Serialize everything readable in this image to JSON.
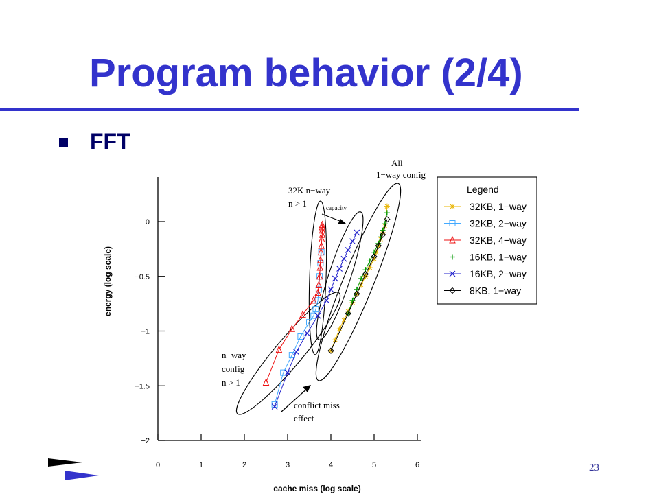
{
  "slide": {
    "title": "Program behavior (2/4)",
    "bullet": "FFT",
    "page_number": "23",
    "accent_color": "#3333cc",
    "logo_icon": "double-arrow-logo-icon"
  },
  "chart_data": {
    "type": "scatter",
    "title": "",
    "xlabel": "cache miss (log scale)",
    "ylabel": "energy (log scale)",
    "xlim": [
      0,
      6
    ],
    "ylim": [
      -2,
      0.4
    ],
    "x_ticks": [
      "0",
      "1",
      "2",
      "3",
      "4",
      "5",
      "6"
    ],
    "y_ticks": [
      "0",
      "−0.5",
      "−1",
      "−1.5",
      "−2"
    ],
    "grid": false,
    "legend_title": "Legend",
    "legend_position": "right",
    "series": [
      {
        "name": "32KB, 1−way",
        "color": "#e8b400",
        "marker": "star",
        "x": [
          4.0,
          4.1,
          4.2,
          4.3,
          4.4,
          4.5,
          4.6,
          4.7,
          4.8,
          4.9,
          5.0,
          5.05,
          5.1,
          5.15,
          5.2,
          5.25,
          5.3
        ],
        "y": [
          -1.18,
          -1.08,
          -0.98,
          -0.9,
          -0.82,
          -0.74,
          -0.66,
          -0.58,
          -0.5,
          -0.42,
          -0.34,
          -0.28,
          -0.22,
          -0.16,
          -0.1,
          -0.04,
          0.14
        ]
      },
      {
        "name": "32KB, 2−way",
        "color": "#44aaff",
        "marker": "square",
        "x": [
          2.7,
          2.9,
          3.1,
          3.3,
          3.5,
          3.6,
          3.65,
          3.7,
          3.72,
          3.74,
          3.76,
          3.78
        ],
        "y": [
          -1.67,
          -1.38,
          -1.22,
          -1.05,
          -0.92,
          -0.86,
          -0.8,
          -0.72,
          -0.62,
          -0.5,
          -0.38,
          -0.28
        ]
      },
      {
        "name": "32KB, 4−way",
        "color": "#ee1111",
        "marker": "triangle",
        "x": [
          2.5,
          2.8,
          3.1,
          3.35,
          3.6,
          3.7,
          3.72,
          3.74,
          3.75,
          3.76,
          3.77,
          3.78,
          3.79,
          3.8,
          3.8,
          3.8,
          3.8
        ],
        "y": [
          -1.47,
          -1.17,
          -0.98,
          -0.85,
          -0.72,
          -0.65,
          -0.58,
          -0.5,
          -0.42,
          -0.35,
          -0.28,
          -0.22,
          -0.16,
          -0.12,
          -0.08,
          -0.05,
          -0.03
        ]
      },
      {
        "name": "16KB, 1−way",
        "color": "#009900",
        "marker": "plus",
        "x": [
          4.4,
          4.5,
          4.6,
          4.7,
          4.8,
          4.9,
          5.0,
          5.1,
          5.15,
          5.2,
          5.25,
          5.3
        ],
        "y": [
          -0.84,
          -0.72,
          -0.62,
          -0.52,
          -0.44,
          -0.36,
          -0.28,
          -0.2,
          -0.14,
          -0.08,
          -0.02,
          0.08
        ]
      },
      {
        "name": "16KB, 2−way",
        "color": "#2222cc",
        "marker": "x",
        "x": [
          2.7,
          3.0,
          3.2,
          3.45,
          3.7,
          3.9,
          4.0,
          4.1,
          4.2,
          4.3,
          4.4,
          4.5,
          4.6
        ],
        "y": [
          -1.69,
          -1.38,
          -1.19,
          -1.02,
          -0.86,
          -0.72,
          -0.62,
          -0.52,
          -0.43,
          -0.34,
          -0.26,
          -0.18,
          -0.1
        ]
      },
      {
        "name": "8KB, 1−way",
        "color": "#000000",
        "marker": "diamond",
        "x": [
          4.0,
          4.4,
          4.6,
          4.8,
          5.0,
          5.1,
          5.2,
          5.3
        ],
        "y": [
          -1.18,
          -0.84,
          -0.66,
          -0.48,
          -0.32,
          -0.22,
          -0.12,
          0.02
        ]
      }
    ],
    "annotations": {
      "all_1way_line1": "All",
      "all_1way_line2": "1−way config",
      "k32_line1": "32K n−way",
      "k32_line2": "n > 1",
      "capacity": "capacity",
      "nway_line1": "n−way",
      "nway_line2": "config",
      "nway_line3": "n > 1",
      "conflict_line1": "conflict miss",
      "conflict_line2": "effect"
    }
  }
}
